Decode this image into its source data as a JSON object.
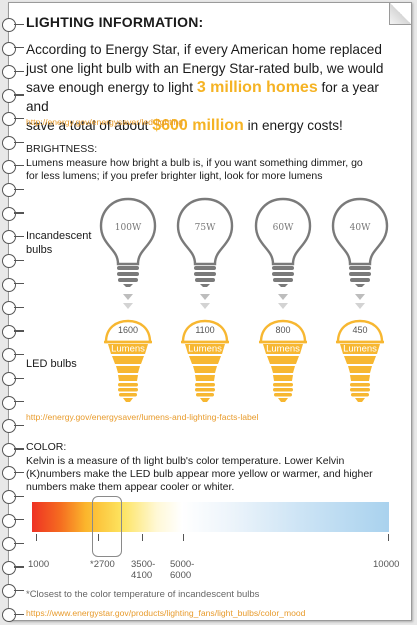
{
  "title": "LIGHTING INFORMATION:",
  "intro": {
    "line1": "According to Energy Star, if every American home replaced",
    "line2": "just one light bulb with an Energy Star-rated bulb, we would",
    "line3_pre": "save enough energy to light ",
    "highlight_homes": "3 million homes",
    "line3_post": " for a year and",
    "line4_pre": "save a total of about ",
    "highlight_money": "$600 million",
    "line4_post": " in energy costs!"
  },
  "link1": "http://energy.gov/energysaver/led-lighting",
  "brightness": {
    "title": "BRIGHTNESS:",
    "text_line1": "Lumens measure how bright a bulb is, if you want something dimmer, go",
    "text_line2": "for less lumens; if you prefer brighter light, look for more lumens",
    "incandescent_label_line1": "Incandescent",
    "incandescent_label_line2": "bulbs",
    "led_label": "LED bulbs",
    "bulbs": [
      {
        "watts": "100W",
        "lumens": "1600",
        "unit": "Lumens"
      },
      {
        "watts": "75W",
        "lumens": "1100",
        "unit": "Lumens"
      },
      {
        "watts": "60W",
        "lumens": "800",
        "unit": "Lumens"
      },
      {
        "watts": "40W",
        "lumens": "450",
        "unit": "Lumens"
      }
    ]
  },
  "link2": "http://energy.gov/energysaver/lumens-and-lighting-facts-label",
  "color": {
    "title": "COLOR:",
    "text_line1": "Kelvin is a measure of th light bulb's color temperature. Lower Kelvin",
    "text_line2": "(K)numbers make the LED bulb appear more yellow or warmer, and higher",
    "text_line3": "numbers make them appear cooler or whiter.",
    "scale": {
      "t1000": "1000",
      "t2700": "*2700",
      "t3500_a": "3500-",
      "t3500_b": "4100",
      "t5000_a": "5000-",
      "t5000_b": "6000",
      "t10000": "10000"
    },
    "footnote": "*Closest to the color temperature of incandescent bulbs"
  },
  "link3": "https://www.energystar.gov/products/lighting_fans/light_bulbs/color_mood",
  "colors": {
    "highlight": "#f5b324",
    "link": "#e89b2c",
    "led_bulb": "#f7b731",
    "incandescent_bulb": "#7a7a7a"
  }
}
